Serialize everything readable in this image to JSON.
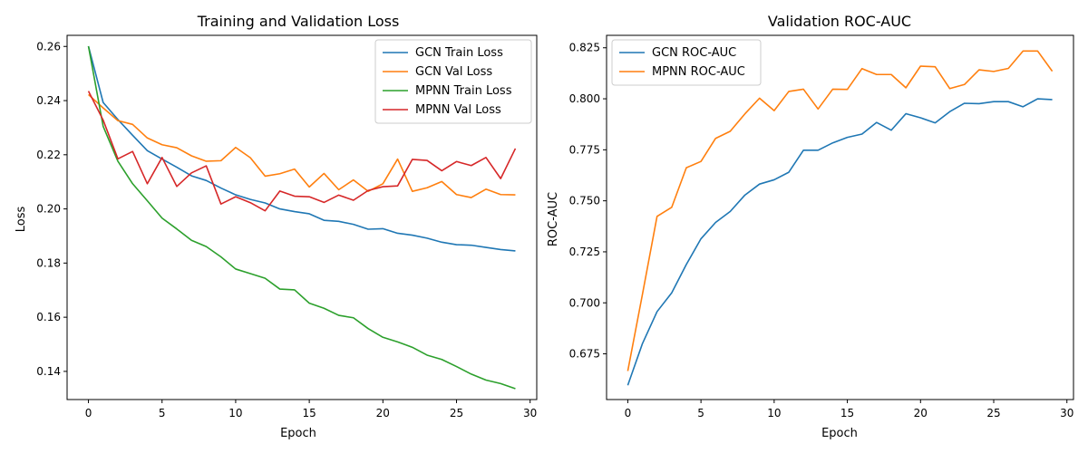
{
  "colors": {
    "blue": "#1f77b4",
    "orange": "#ff7f0e",
    "green": "#2ca02c",
    "red": "#d62728"
  },
  "chart_data": [
    {
      "type": "line",
      "title": "Training and Validation Loss",
      "xlabel": "Epoch",
      "ylabel": "Loss",
      "xlim": [
        -1.45,
        30.45
      ],
      "ylim": [
        0.1296,
        0.2641
      ],
      "xticks": [
        0,
        5,
        10,
        15,
        20,
        25,
        30
      ],
      "yticks": [
        0.14,
        0.16,
        0.18,
        0.2,
        0.22,
        0.24,
        0.26
      ],
      "ytick_labels": [
        "0.14",
        "0.16",
        "0.18",
        "0.20",
        "0.22",
        "0.24",
        "0.26"
      ],
      "grid": false,
      "legend_position": "top-right",
      "x": [
        0,
        1,
        2,
        3,
        4,
        5,
        6,
        7,
        8,
        9,
        10,
        11,
        12,
        13,
        14,
        15,
        16,
        17,
        18,
        19,
        20,
        21,
        22,
        23,
        24,
        25,
        26,
        27,
        28,
        29
      ],
      "series": [
        {
          "name": "GCN Train Loss",
          "color": "#1f77b4",
          "values": [
            0.2601,
            0.2393,
            0.233,
            0.2272,
            0.2215,
            0.2184,
            0.2154,
            0.2122,
            0.2105,
            0.2077,
            0.2052,
            0.2035,
            0.2022,
            0.2,
            0.199,
            0.1982,
            0.1958,
            0.1954,
            0.1943,
            0.1925,
            0.1927,
            0.191,
            0.1903,
            0.1892,
            0.1877,
            0.1868,
            0.1866,
            0.1858,
            0.185,
            0.1845
          ]
        },
        {
          "name": "GCN Val Loss",
          "color": "#ff7f0e",
          "values": [
            0.2422,
            0.2373,
            0.2326,
            0.2312,
            0.2262,
            0.2237,
            0.2226,
            0.2196,
            0.2176,
            0.2178,
            0.2227,
            0.2189,
            0.2121,
            0.213,
            0.2147,
            0.2081,
            0.2131,
            0.2071,
            0.2107,
            0.2065,
            0.2093,
            0.2184,
            0.2065,
            0.2078,
            0.2101,
            0.2053,
            0.2042,
            0.2073,
            0.2053,
            0.2052
          ]
        },
        {
          "name": "MPNN Train Loss",
          "color": "#2ca02c",
          "values": [
            0.2601,
            0.2305,
            0.2176,
            0.2093,
            0.203,
            0.1966,
            0.1926,
            0.1884,
            0.1861,
            0.1823,
            0.1778,
            0.1761,
            0.1744,
            0.1704,
            0.1701,
            0.1652,
            0.1633,
            0.1607,
            0.1598,
            0.1558,
            0.1526,
            0.1509,
            0.1489,
            0.146,
            0.1444,
            0.1418,
            0.139,
            0.1368,
            0.1355,
            0.1336
          ]
        },
        {
          "name": "MPNN Val Loss",
          "color": "#d62728",
          "values": [
            0.2435,
            0.2328,
            0.2185,
            0.2212,
            0.2093,
            0.219,
            0.2083,
            0.2133,
            0.2159,
            0.2018,
            0.2045,
            0.2023,
            0.1993,
            0.2066,
            0.2047,
            0.2045,
            0.2024,
            0.2051,
            0.2032,
            0.2068,
            0.2082,
            0.2085,
            0.2183,
            0.2179,
            0.2141,
            0.2175,
            0.216,
            0.219,
            0.2112,
            0.2223
          ]
        }
      ]
    },
    {
      "type": "line",
      "title": "Validation ROC-AUC",
      "xlabel": "Epoch",
      "ylabel": "ROC-AUC",
      "xlim": [
        -1.45,
        30.45
      ],
      "ylim": [
        0.6526,
        0.8311
      ],
      "xticks": [
        0,
        5,
        10,
        15,
        20,
        25,
        30
      ],
      "yticks": [
        0.675,
        0.7,
        0.725,
        0.75,
        0.775,
        0.8,
        0.825
      ],
      "ytick_labels": [
        "0.675",
        "0.700",
        "0.725",
        "0.750",
        "0.775",
        "0.800",
        "0.825"
      ],
      "grid": false,
      "legend_position": "top-left",
      "x": [
        0,
        1,
        2,
        3,
        4,
        5,
        6,
        7,
        8,
        9,
        10,
        11,
        12,
        13,
        14,
        15,
        16,
        17,
        18,
        19,
        20,
        21,
        22,
        23,
        24,
        25,
        26,
        27,
        28,
        29
      ],
      "series": [
        {
          "name": "GCN ROC-AUC",
          "color": "#1f77b4",
          "values": [
            0.6596,
            0.68,
            0.6957,
            0.7049,
            0.7188,
            0.7314,
            0.7394,
            0.7448,
            0.7528,
            0.7582,
            0.7603,
            0.764,
            0.7748,
            0.7748,
            0.7784,
            0.7811,
            0.7827,
            0.7884,
            0.7846,
            0.7927,
            0.7907,
            0.7882,
            0.7937,
            0.7978,
            0.7976,
            0.7986,
            0.7986,
            0.7961,
            0.8,
            0.7996
          ]
        },
        {
          "name": "MPNN ROC-AUC",
          "color": "#ff7f0e",
          "values": [
            0.6666,
            0.7041,
            0.7424,
            0.7468,
            0.7662,
            0.7693,
            0.7806,
            0.7841,
            0.7926,
            0.8003,
            0.7942,
            0.8036,
            0.8047,
            0.795,
            0.8047,
            0.8046,
            0.8148,
            0.8119,
            0.8119,
            0.8054,
            0.816,
            0.8157,
            0.805,
            0.807,
            0.8142,
            0.8134,
            0.8149,
            0.8234,
            0.8234,
            0.8135
          ]
        }
      ]
    }
  ]
}
